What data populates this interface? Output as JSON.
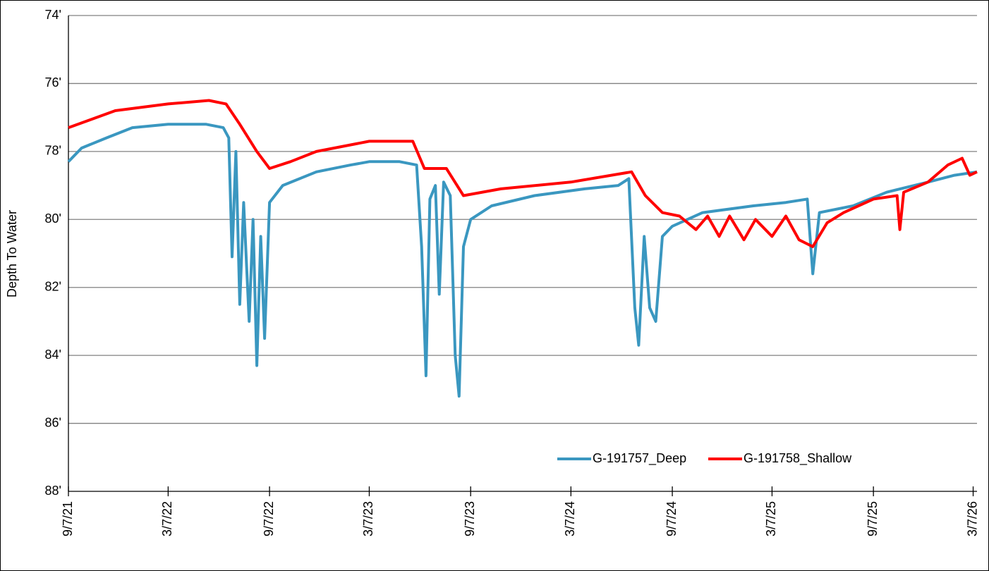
{
  "chart_data": {
    "type": "line",
    "y_label": "Depth To Water",
    "y_inverted": true,
    "ylim": [
      74,
      88
    ],
    "yticks": [
      {
        "value": 74,
        "label": "74'"
      },
      {
        "value": 76,
        "label": "76'"
      },
      {
        "value": 78,
        "label": "78'"
      },
      {
        "value": 80,
        "label": "80'"
      },
      {
        "value": 82,
        "label": "82'"
      },
      {
        "value": 84,
        "label": "84'"
      },
      {
        "value": 86,
        "label": "86'"
      },
      {
        "value": 88,
        "label": "88'"
      }
    ],
    "xlim": [
      "2021-09-07",
      "2026-03-14"
    ],
    "xticks": [
      {
        "value": "2021-09-07",
        "label": "9/7/21"
      },
      {
        "value": "2022-03-07",
        "label": "3/7/22"
      },
      {
        "value": "2022-09-07",
        "label": "9/7/22"
      },
      {
        "value": "2023-03-07",
        "label": "3/7/23"
      },
      {
        "value": "2023-09-07",
        "label": "9/7/23"
      },
      {
        "value": "2024-03-07",
        "label": "3/7/24"
      },
      {
        "value": "2024-09-07",
        "label": "9/7/24"
      },
      {
        "value": "2025-03-07",
        "label": "3/7/25"
      },
      {
        "value": "2025-09-07",
        "label": "9/7/25"
      },
      {
        "value": "2026-03-07",
        "label": "3/7/26"
      }
    ],
    "grid": true,
    "legend": "lower right",
    "series": [
      {
        "name": "G-191757_Deep",
        "color": "#3a97c0",
        "x": [
          "2021-09-07",
          "2021-10-01",
          "2021-11-15",
          "2022-01-01",
          "2022-03-07",
          "2022-05-15",
          "2022-06-15",
          "2022-06-25",
          "2022-07-01",
          "2022-07-08",
          "2022-07-15",
          "2022-07-22",
          "2022-08-01",
          "2022-08-08",
          "2022-08-15",
          "2022-08-22",
          "2022-08-29",
          "2022-09-07",
          "2022-10-01",
          "2022-12-01",
          "2023-02-01",
          "2023-03-07",
          "2023-05-01",
          "2023-06-01",
          "2023-06-10",
          "2023-06-18",
          "2023-06-25",
          "2023-07-05",
          "2023-07-12",
          "2023-07-20",
          "2023-08-01",
          "2023-08-10",
          "2023-08-17",
          "2023-08-25",
          "2023-09-07",
          "2023-10-15",
          "2024-01-01",
          "2024-04-01",
          "2024-06-01",
          "2024-06-20",
          "2024-07-01",
          "2024-07-08",
          "2024-07-18",
          "2024-07-28",
          "2024-08-08",
          "2024-08-20",
          "2024-09-07",
          "2024-11-01",
          "2025-02-01",
          "2025-04-01",
          "2025-05-10",
          "2025-05-20",
          "2025-06-01",
          "2025-08-01",
          "2025-10-01",
          "2025-12-15",
          "2026-02-01",
          "2026-03-14"
        ],
        "values": [
          78.3,
          77.9,
          77.6,
          77.3,
          77.2,
          77.2,
          77.3,
          77.6,
          81.1,
          78.0,
          82.5,
          79.5,
          83.0,
          80.0,
          84.3,
          80.5,
          83.5,
          79.5,
          79.0,
          78.6,
          78.4,
          78.3,
          78.3,
          78.4,
          80.8,
          84.6,
          79.4,
          79.0,
          82.2,
          78.9,
          79.3,
          84.0,
          85.2,
          80.8,
          80.0,
          79.6,
          79.3,
          79.1,
          79.0,
          78.8,
          82.6,
          83.7,
          80.5,
          82.6,
          83.0,
          80.5,
          80.2,
          79.8,
          79.6,
          79.5,
          79.4,
          81.6,
          79.8,
          79.6,
          79.2,
          78.9,
          78.7,
          78.6
        ]
      },
      {
        "name": "G-191758_Shallow",
        "color": "#ff0000",
        "x": [
          "2021-09-07",
          "2021-12-01",
          "2022-03-07",
          "2022-05-20",
          "2022-06-20",
          "2022-07-15",
          "2022-08-15",
          "2022-09-07",
          "2022-10-15",
          "2022-12-01",
          "2023-03-07",
          "2023-05-25",
          "2023-06-15",
          "2023-07-25",
          "2023-08-25",
          "2023-11-01",
          "2024-03-07",
          "2024-06-25",
          "2024-07-20",
          "2024-08-20",
          "2024-09-20",
          "2024-10-20",
          "2024-11-10",
          "2024-12-01",
          "2024-12-20",
          "2025-01-15",
          "2025-02-05",
          "2025-03-07",
          "2025-04-01",
          "2025-04-25",
          "2025-05-20",
          "2025-06-15",
          "2025-07-15",
          "2025-09-07",
          "2025-10-20",
          "2025-10-25",
          "2025-11-01",
          "2025-12-15",
          "2026-01-20",
          "2026-02-15",
          "2026-03-01",
          "2026-03-14"
        ],
        "values": [
          77.3,
          76.8,
          76.6,
          76.5,
          76.6,
          77.2,
          78.0,
          78.5,
          78.3,
          78.0,
          77.7,
          77.7,
          78.5,
          78.5,
          79.3,
          79.1,
          78.9,
          78.6,
          79.3,
          79.8,
          79.9,
          80.3,
          79.9,
          80.5,
          79.9,
          80.6,
          80.0,
          80.5,
          79.9,
          80.6,
          80.8,
          80.1,
          79.8,
          79.4,
          79.3,
          80.3,
          79.2,
          78.9,
          78.4,
          78.2,
          78.7,
          78.6
        ]
      }
    ]
  }
}
